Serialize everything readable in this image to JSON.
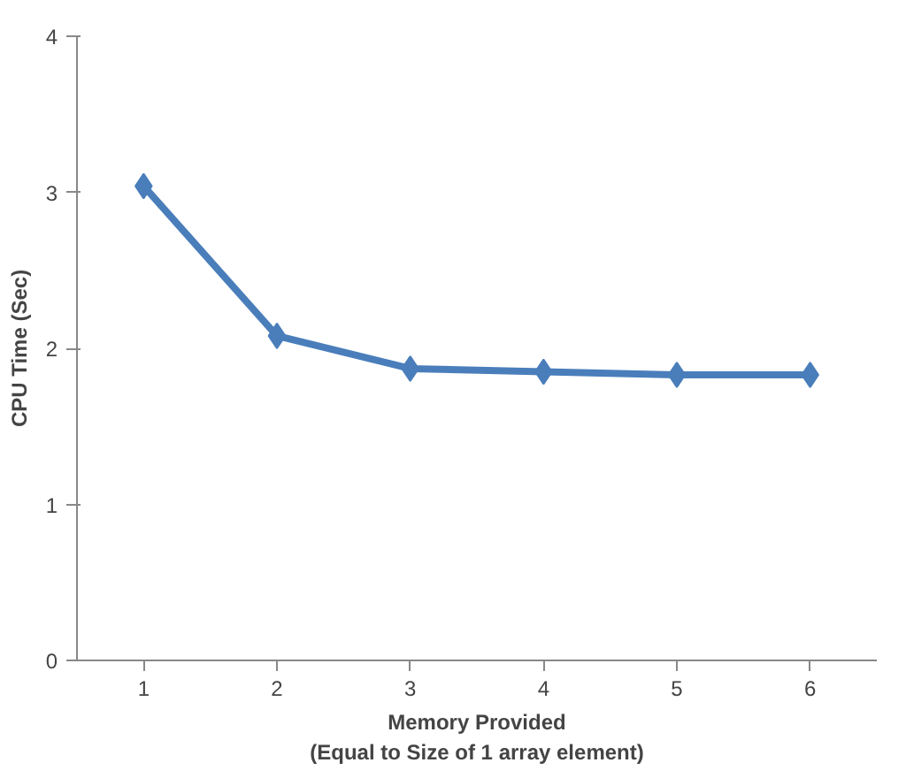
{
  "chart_data": {
    "type": "line",
    "xlabel": "Memory Provided\n(Equal to Size of 1 array element)",
    "ylabel": "CPU Time (Sec)",
    "categories": [
      "1",
      "2",
      "3",
      "4",
      "5",
      "6"
    ],
    "series": [
      {
        "color": "#4a7ebb",
        "values": [
          3.04,
          2.08,
          1.87,
          1.85,
          1.83,
          1.83
        ]
      }
    ],
    "ylim": [
      0,
      4
    ],
    "yticks": [
      0,
      1,
      2,
      3,
      4
    ],
    "grid": false,
    "marker": "diamond",
    "line_style": "solid"
  }
}
